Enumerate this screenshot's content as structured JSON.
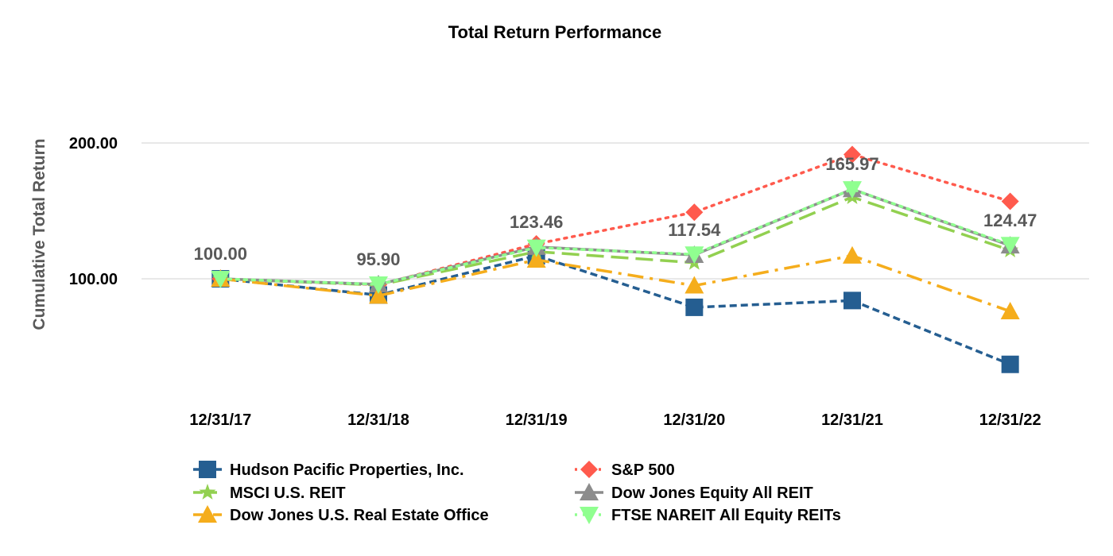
{
  "chart_data": {
    "type": "line",
    "title": "Total Return Performance",
    "xlabel": "",
    "ylabel": "Cumulative Total Return",
    "categories": [
      "12/31/17",
      "12/31/18",
      "12/31/19",
      "12/31/20",
      "12/31/21",
      "12/31/22"
    ],
    "ylim": [
      20,
      220
    ],
    "yticks": [
      {
        "value": 100,
        "label": "100.00"
      },
      {
        "value": 200,
        "label": "200.00"
      }
    ],
    "grid": true,
    "legend_position": "bottom",
    "series": [
      {
        "name": "Hudson Pacific Properties, Inc.",
        "color": "#255e91",
        "marker": "square",
        "dash": "short-dash",
        "values": [
          100.0,
          88.0,
          117.0,
          79.0,
          84.0,
          37.0
        ]
      },
      {
        "name": "S&P 500",
        "color": "#ff5a4d",
        "marker": "diamond",
        "dash": "dot",
        "values": [
          100.0,
          95.6,
          125.7,
          149.0,
          191.5,
          157.0
        ]
      },
      {
        "name": "MSCI U.S. REIT",
        "color": "#92d050",
        "marker": "star",
        "dash": "long-dash",
        "values": [
          100.0,
          95.4,
          120.0,
          111.9,
          160.2,
          121.0
        ]
      },
      {
        "name": "Dow Jones Equity All REIT",
        "color": "#8c8c8c",
        "marker": "triangle",
        "dash": "solid",
        "values": [
          100.0,
          95.9,
          123.46,
          117.54,
          165.97,
          124.47
        ]
      },
      {
        "name": "Dow Jones U.S. Real Estate Office",
        "color": "#f5ad1c",
        "marker": "triangle",
        "dash": "dash-dot",
        "values": [
          100.0,
          87.5,
          114.0,
          95.0,
          117.0,
          76.0
        ]
      },
      {
        "name": "FTSE NAREIT All Equity REITs",
        "color": "#90ff90",
        "marker": "triangle-down",
        "dash": "dot",
        "values": [
          100.0,
          95.9,
          123.0,
          118.0,
          166.0,
          125.0
        ]
      }
    ],
    "data_labels": [
      {
        "category": "12/31/17",
        "text": "100.00"
      },
      {
        "category": "12/31/18",
        "text": "95.90"
      },
      {
        "category": "12/31/19",
        "text": "123.46"
      },
      {
        "category": "12/31/20",
        "text": "117.54"
      },
      {
        "category": "12/31/21",
        "text": "165.97"
      },
      {
        "category": "12/31/22",
        "text": "124.47"
      }
    ]
  }
}
